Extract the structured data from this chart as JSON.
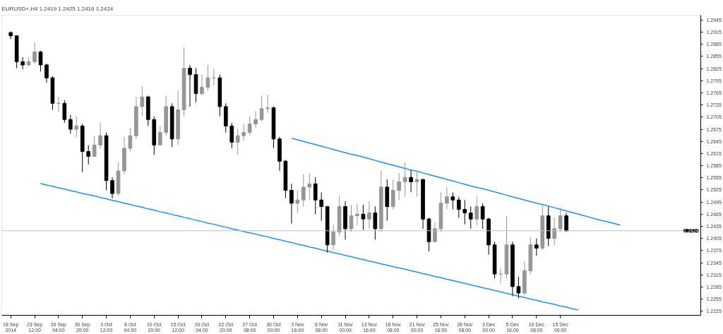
{
  "chart_data": {
    "type": "candlestick",
    "title": "EURUSD+,H4  1.2419 1.2425 1.2416 1.2424",
    "categories": [
      "18 Sep 2014",
      null,
      null,
      null,
      "23 Sep 12:00",
      null,
      null,
      null,
      "26 Sep 04:00",
      null,
      null,
      null,
      "30 Sep 20:00",
      null,
      null,
      null,
      "3 Oct 12:00",
      null,
      null,
      null,
      "8 Oct 04:00",
      null,
      null,
      null,
      "10 Oct 20:00",
      null,
      null,
      null,
      "15 Oct 12:00",
      null,
      null,
      null,
      "20 Oct 04:00",
      null,
      null,
      null,
      "22 Oct 20:00",
      null,
      null,
      null,
      "27 Oct 08:00",
      null,
      null,
      null,
      "30 Oct 00:00",
      null,
      null,
      null,
      "3 Nov 16:00",
      null,
      null,
      null,
      "6 Nov 08:00",
      null,
      null,
      null,
      "11 Nov 00:00",
      null,
      null,
      null,
      "13 Nov 16:00",
      null,
      null,
      null,
      "18 Nov 08:00",
      null,
      null,
      null,
      "21 Nov 00:00",
      null,
      null,
      null,
      "25 Nov 16:00",
      null,
      null,
      null,
      "28 Nov 08:00",
      null,
      null,
      null,
      "3 Dec 00:00",
      null,
      null,
      null,
      "5 Dec 16:00",
      null,
      null,
      null,
      "10 Dec 08:00",
      null,
      null,
      null,
      "15 Dec 00:00",
      null,
      null,
      null,
      null,
      null,
      null,
      null,
      null,
      null,
      null,
      null,
      null,
      null,
      null,
      null,
      null,
      null,
      null,
      null,
      null,
      null,
      null,
      null
    ],
    "ohlc": [
      [
        1.2914,
        1.2917,
        1.2898,
        1.2906
      ],
      [
        1.2906,
        1.2906,
        1.2826,
        1.2842
      ],
      [
        1.2842,
        1.2853,
        1.2823,
        1.2834
      ],
      [
        1.2834,
        1.2853,
        1.2831,
        1.2842
      ],
      [
        1.2842,
        1.289,
        1.2837,
        1.2866
      ],
      [
        1.2866,
        1.2869,
        1.2818,
        1.2834
      ],
      [
        1.2834,
        1.2837,
        1.279,
        1.2802
      ],
      [
        1.2802,
        1.2806,
        1.2723,
        1.2739
      ],
      [
        1.2739,
        1.2755,
        1.2718,
        1.2739
      ],
      [
        1.2739,
        1.2747,
        1.2691,
        1.2699
      ],
      [
        1.2699,
        1.271,
        1.2664,
        1.2675
      ],
      [
        1.2675,
        1.2707,
        1.2655,
        1.2683
      ],
      [
        1.2683,
        1.2688,
        1.2569,
        1.262
      ],
      [
        1.262,
        1.2636,
        1.2588,
        1.2608
      ],
      [
        1.2608,
        1.2659,
        1.2608,
        1.2636
      ],
      [
        1.2636,
        1.2691,
        1.2628,
        1.2659
      ],
      [
        1.2659,
        1.2667,
        1.2524,
        1.2548
      ],
      [
        1.2548,
        1.2556,
        1.2504,
        1.2516
      ],
      [
        1.2516,
        1.2593,
        1.2511,
        1.2572
      ],
      [
        1.2572,
        1.2656,
        1.2564,
        1.2628
      ],
      [
        1.2628,
        1.2678,
        1.262,
        1.2659
      ],
      [
        1.2659,
        1.2755,
        1.2651,
        1.2731
      ],
      [
        1.2731,
        1.2782,
        1.2707,
        1.2755
      ],
      [
        1.2755,
        1.2758,
        1.2683,
        1.2699
      ],
      [
        1.2699,
        1.2707,
        1.2612,
        1.2636
      ],
      [
        1.2636,
        1.2683,
        1.2636,
        1.2667
      ],
      [
        1.2667,
        1.2758,
        1.2659,
        1.2731
      ],
      [
        1.2731,
        1.2739,
        1.2631,
        1.2651
      ],
      [
        1.2651,
        1.2771,
        1.2636,
        1.2723
      ],
      [
        1.2723,
        1.2877,
        1.2707,
        1.2826
      ],
      [
        1.2826,
        1.2834,
        1.2731,
        1.281
      ],
      [
        1.281,
        1.2826,
        1.2742,
        1.2763
      ],
      [
        1.2763,
        1.281,
        1.2758,
        1.2779
      ],
      [
        1.2779,
        1.2834,
        1.2771,
        1.2802
      ],
      [
        1.2802,
        1.2826,
        1.2783,
        1.2802
      ],
      [
        1.2802,
        1.281,
        1.2707,
        1.2731
      ],
      [
        1.2731,
        1.2739,
        1.2667,
        1.2683
      ],
      [
        1.2683,
        1.2691,
        1.2628,
        1.2643
      ],
      [
        1.2643,
        1.2675,
        1.2612,
        1.2659
      ],
      [
        1.2659,
        1.2688,
        1.2647,
        1.2667
      ],
      [
        1.2667,
        1.2707,
        1.2659,
        1.2688
      ],
      [
        1.2688,
        1.272,
        1.2678,
        1.2699
      ],
      [
        1.2699,
        1.2758,
        1.2694,
        1.2726
      ],
      [
        1.2726,
        1.276,
        1.2715,
        1.2728
      ],
      [
        1.2728,
        1.2731,
        1.2628,
        1.2651
      ],
      [
        1.2651,
        1.2656,
        1.2572,
        1.2596
      ],
      [
        1.2596,
        1.2599,
        1.2505,
        1.2524
      ],
      [
        1.2524,
        1.254,
        1.2442,
        1.2492
      ],
      [
        1.2492,
        1.2524,
        1.2468,
        1.25
      ],
      [
        1.25,
        1.2564,
        1.2484,
        1.2532
      ],
      [
        1.2532,
        1.2567,
        1.25,
        1.254
      ],
      [
        1.254,
        1.2556,
        1.2465,
        1.25
      ],
      [
        1.25,
        1.2519,
        1.2449,
        1.2484
      ],
      [
        1.2484,
        1.2484,
        1.237,
        1.2389
      ],
      [
        1.2389,
        1.244,
        1.2376,
        1.2421
      ],
      [
        1.2421,
        1.2511,
        1.2413,
        1.2484
      ],
      [
        1.2484,
        1.2497,
        1.2402,
        1.2429
      ],
      [
        1.2429,
        1.2488,
        1.2421,
        1.2461
      ],
      [
        1.2461,
        1.2491,
        1.2437,
        1.2465
      ],
      [
        1.2465,
        1.2488,
        1.2426,
        1.2453
      ],
      [
        1.2453,
        1.2497,
        1.2429,
        1.2468
      ],
      [
        1.2468,
        1.2484,
        1.2402,
        1.2429
      ],
      [
        1.2429,
        1.2572,
        1.2421,
        1.2532
      ],
      [
        1.2532,
        1.2551,
        1.2449,
        1.2484
      ],
      [
        1.2484,
        1.2551,
        1.2477,
        1.2524
      ],
      [
        1.2524,
        1.2567,
        1.25,
        1.2545
      ],
      [
        1.2545,
        1.2593,
        1.2508,
        1.2556
      ],
      [
        1.2556,
        1.2575,
        1.2519,
        1.2545
      ],
      [
        1.2545,
        1.2572,
        1.2508,
        1.2551
      ],
      [
        1.2551,
        1.2551,
        1.2429,
        1.2453
      ],
      [
        1.2453,
        1.2456,
        1.2373,
        1.2397
      ],
      [
        1.2397,
        1.2445,
        1.2397,
        1.2429
      ],
      [
        1.2429,
        1.2519,
        1.2421,
        1.2492
      ],
      [
        1.2492,
        1.2532,
        1.2477,
        1.2508
      ],
      [
        1.2508,
        1.2519,
        1.2477,
        1.25
      ],
      [
        1.25,
        1.2508,
        1.2456,
        1.2477
      ],
      [
        1.2477,
        1.25,
        1.244,
        1.2468
      ],
      [
        1.2468,
        1.2484,
        1.2429,
        1.2453
      ],
      [
        1.2453,
        1.2508,
        1.2437,
        1.2484
      ],
      [
        1.2484,
        1.2492,
        1.2429,
        1.2453
      ],
      [
        1.2453,
        1.2456,
        1.2365,
        1.2389
      ],
      [
        1.2389,
        1.2397,
        1.2306,
        1.2317
      ],
      [
        1.2317,
        1.2333,
        1.2294,
        1.2317
      ],
      [
        1.2317,
        1.2461,
        1.2306,
        1.2389
      ],
      [
        1.2389,
        1.2397,
        1.2262,
        1.2286
      ],
      [
        1.2286,
        1.231,
        1.2257,
        1.227
      ],
      [
        1.227,
        1.2349,
        1.2265,
        1.2325
      ],
      [
        1.2325,
        1.2408,
        1.2317,
        1.2389
      ],
      [
        1.2389,
        1.2405,
        1.2362,
        1.2381
      ],
      [
        1.2381,
        1.2489,
        1.2376,
        1.2461
      ],
      [
        1.2461,
        1.2484,
        1.2386,
        1.2405
      ],
      [
        1.2405,
        1.2456,
        1.2389,
        1.2429
      ],
      [
        1.2429,
        1.2481,
        1.2421,
        1.2461
      ],
      [
        1.2461,
        1.2468,
        1.2421,
        1.2424
      ],
      null,
      null,
      null,
      null,
      null,
      null,
      null,
      null,
      null,
      null,
      null,
      null,
      null,
      null,
      null,
      null,
      null,
      null,
      null,
      null,
      null,
      null
    ],
    "colors": [
      "#000000",
      "#000000",
      "#000000",
      "#969696",
      "#969696",
      "#000000",
      "#000000",
      "#000000",
      "#969696",
      "#000000",
      "#000000",
      "#969696",
      "#000000",
      "#000000",
      "#969696",
      "#969696",
      "#000000",
      "#000000",
      "#969696",
      "#969696",
      "#969696",
      "#969696",
      "#969696",
      "#000000",
      "#000000",
      "#969696",
      "#969696",
      "#000000",
      "#969696",
      "#969696",
      "#000000",
      "#000000",
      "#969696",
      "#969696",
      "#969696",
      "#000000",
      "#000000",
      "#000000",
      "#969696",
      "#969696",
      "#969696",
      "#969696",
      "#969696",
      "#969696",
      "#000000",
      "#000000",
      "#000000",
      "#000000",
      "#969696",
      "#969696",
      "#969696",
      "#000000",
      "#000000",
      "#000000",
      "#969696",
      "#969696",
      "#000000",
      "#969696",
      "#969696",
      "#000000",
      "#969696",
      "#000000",
      "#969696",
      "#000000",
      "#969696",
      "#969696",
      "#969696",
      "#000000",
      "#969696",
      "#000000",
      "#000000",
      "#969696",
      "#969696",
      "#969696",
      "#000000",
      "#000000",
      "#000000",
      "#000000",
      "#969696",
      "#000000",
      "#000000",
      "#000000",
      "#969696",
      "#969696",
      "#000000",
      "#000000",
      "#969696",
      "#969696",
      "#000000",
      "#969696",
      "#000000",
      "#969696",
      "#969696",
      "#000000",
      null,
      null,
      null,
      null,
      null,
      null,
      null,
      null,
      null,
      null,
      null,
      null,
      null,
      null,
      null,
      null,
      null,
      null,
      null,
      null,
      null,
      null
    ],
    "series": [
      {
        "type": "line",
        "color": "#1e90ff",
        "values": [
          null,
          null,
          null,
          null,
          null,
          1.2541,
          1.2537,
          1.2534,
          1.253,
          1.2527,
          1.2523,
          1.252,
          1.2516,
          1.2513,
          1.251,
          1.2506,
          1.2503,
          1.2499,
          1.2496,
          1.2492,
          1.2489,
          1.2485,
          1.2482,
          1.2478,
          1.2475,
          1.2471,
          1.2468,
          1.2464,
          1.2461,
          1.2457,
          1.2454,
          1.245,
          1.2447,
          1.2443,
          1.244,
          1.2436,
          1.2433,
          1.2429,
          1.2426,
          1.2422,
          1.2419,
          1.2416,
          1.2412,
          1.2409,
          1.2405,
          1.2402,
          1.2398,
          1.2395,
          1.2391,
          1.2388,
          1.2384,
          1.2381,
          1.2377,
          1.2374,
          1.237,
          1.2367,
          1.2363,
          1.236,
          1.2356,
          1.2353,
          1.2349,
          1.2346,
          1.2342,
          1.2339,
          1.2335,
          1.2332,
          1.2329,
          1.2325,
          1.2322,
          1.2318,
          1.2315,
          1.2311,
          1.2308,
          1.2304,
          1.2301,
          1.2297,
          1.2294,
          1.229,
          1.2287,
          1.2283,
          1.228,
          1.2276,
          1.2273,
          1.2269,
          1.2266,
          1.2262,
          1.2259,
          1.2255,
          1.2252,
          1.2248,
          1.2245,
          1.2242,
          1.2238,
          1.2235,
          1.2231,
          1.2228,
          null,
          null,
          null,
          null,
          null,
          null,
          null,
          null,
          null,
          null,
          null,
          null,
          null,
          null,
          null,
          null,
          null,
          null,
          null,
          null
        ]
      },
      {
        "type": "line",
        "color": "#1e90ff",
        "values": [
          null,
          null,
          null,
          null,
          null,
          null,
          null,
          null,
          null,
          null,
          null,
          null,
          null,
          null,
          null,
          null,
          null,
          null,
          null,
          null,
          null,
          null,
          null,
          null,
          null,
          null,
          null,
          null,
          null,
          null,
          null,
          null,
          null,
          null,
          null,
          null,
          null,
          null,
          null,
          null,
          null,
          null,
          null,
          null,
          null,
          null,
          null,
          1.2653,
          1.2649,
          1.2645,
          1.2641,
          1.2637,
          1.2633,
          1.2629,
          1.2625,
          1.2621,
          1.2617,
          1.2613,
          1.261,
          1.2606,
          1.2602,
          1.2598,
          1.2594,
          1.259,
          1.2586,
          1.2582,
          1.2578,
          1.2574,
          1.2571,
          1.2567,
          1.2563,
          1.2559,
          1.2555,
          1.2551,
          1.2547,
          1.2543,
          1.2539,
          1.2535,
          1.2531,
          1.2528,
          1.2524,
          1.252,
          1.2516,
          1.2512,
          1.2508,
          1.2504,
          1.25,
          1.2496,
          1.2492,
          1.2489,
          1.2485,
          1.2481,
          1.2477,
          1.2473,
          1.2469,
          1.2465,
          1.2461,
          1.2457,
          1.2453,
          1.2449,
          1.2446,
          1.2442,
          1.2438,
          null,
          null,
          null,
          null,
          null,
          null,
          null,
          null,
          null,
          null,
          null,
          null,
          null
        ]
      }
    ],
    "ylim": [
      1.2215,
      1.2957
    ],
    "yticks": [
      1.2225,
      1.2255,
      1.2285,
      1.2315,
      1.2345,
      1.2375,
      1.2405,
      1.2435,
      1.2465,
      1.2495,
      1.2525,
      1.2555,
      1.2585,
      1.2615,
      1.2645,
      1.2675,
      1.2705,
      1.2735,
      1.2765,
      1.2795,
      1.2825,
      1.2855,
      1.2885,
      1.2915,
      1.2945
    ],
    "ref_lines": [
      {
        "axis": "y",
        "value": 1.2424,
        "label": "1.2424",
        "color": "#c0c0c0"
      }
    ]
  }
}
